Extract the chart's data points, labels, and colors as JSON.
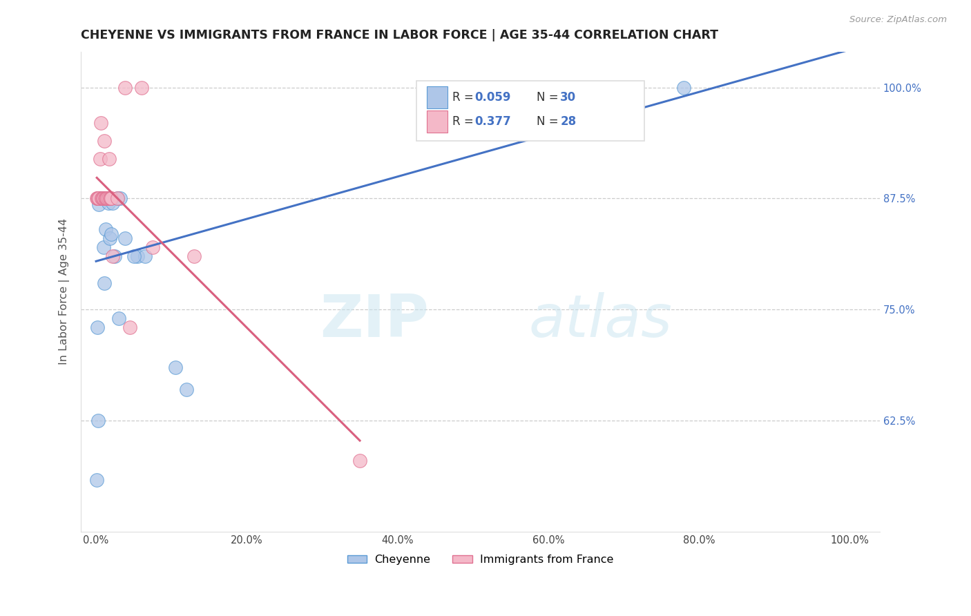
{
  "title": "CHEYENNE VS IMMIGRANTS FROM FRANCE IN LABOR FORCE | AGE 35-44 CORRELATION CHART",
  "source": "Source: ZipAtlas.com",
  "ylabel": "In Labor Force | Age 35-44",
  "watermark_zip": "ZIP",
  "watermark_atlas": "atlas",
  "cheyenne_scatter_color": "#aec6e8",
  "cheyenne_edge_color": "#5b9bd5",
  "france_scatter_color": "#f4b8c8",
  "france_edge_color": "#e07090",
  "cheyenne_line_color": "#4472c4",
  "france_line_color": "#d95f7f",
  "r_cheyenne": "0.059",
  "n_cheyenne": "30",
  "r_france": "0.377",
  "n_france": "28",
  "cheyenne_x": [
    0.001,
    0.003,
    0.004,
    0.005,
    0.006,
    0.007,
    0.008,
    0.009,
    0.01,
    0.012,
    0.013,
    0.015,
    0.016,
    0.018,
    0.02,
    0.022,
    0.025,
    0.028,
    0.03,
    0.032,
    0.038,
    0.055,
    0.065,
    0.105,
    0.12,
    0.7,
    0.78,
    0.002,
    0.011,
    0.05
  ],
  "cheyenne_y": [
    0.558,
    0.625,
    0.868,
    0.875,
    0.875,
    0.875,
    0.875,
    0.875,
    0.82,
    0.875,
    0.84,
    0.875,
    0.87,
    0.83,
    0.835,
    0.87,
    0.81,
    0.875,
    0.74,
    0.875,
    0.83,
    0.81,
    0.81,
    0.685,
    0.66,
    1.0,
    1.0,
    0.73,
    0.78,
    0.81
  ],
  "france_x": [
    0.001,
    0.002,
    0.003,
    0.004,
    0.005,
    0.006,
    0.007,
    0.008,
    0.009,
    0.01,
    0.011,
    0.012,
    0.013,
    0.014,
    0.015,
    0.016,
    0.017,
    0.018,
    0.019,
    0.02,
    0.022,
    0.028,
    0.038,
    0.075,
    0.13,
    0.35,
    0.06,
    0.045
  ],
  "france_y": [
    0.875,
    0.875,
    0.875,
    0.875,
    0.92,
    0.96,
    0.875,
    0.875,
    0.875,
    0.875,
    0.94,
    0.875,
    0.875,
    0.875,
    0.875,
    0.875,
    0.92,
    0.875,
    0.875,
    0.875,
    0.81,
    0.875,
    1.0,
    0.82,
    0.81,
    0.58,
    1.0,
    0.73
  ],
  "ytick_values": [
    0.625,
    0.75,
    0.875,
    1.0
  ],
  "ytick_labels": [
    "62.5%",
    "75.0%",
    "87.5%",
    "100.0%"
  ],
  "xtick_values": [
    0.0,
    0.2,
    0.4,
    0.6,
    0.8,
    1.0
  ],
  "xtick_labels": [
    "0.0%",
    "20.0%",
    "40.0%",
    "60.0%",
    "80.0%",
    "100.0%"
  ],
  "xlim": [
    -0.02,
    1.04
  ],
  "ylim": [
    0.5,
    1.04
  ],
  "legend_label_cheyenne": "Cheyenne",
  "legend_label_france": "Immigrants from France"
}
